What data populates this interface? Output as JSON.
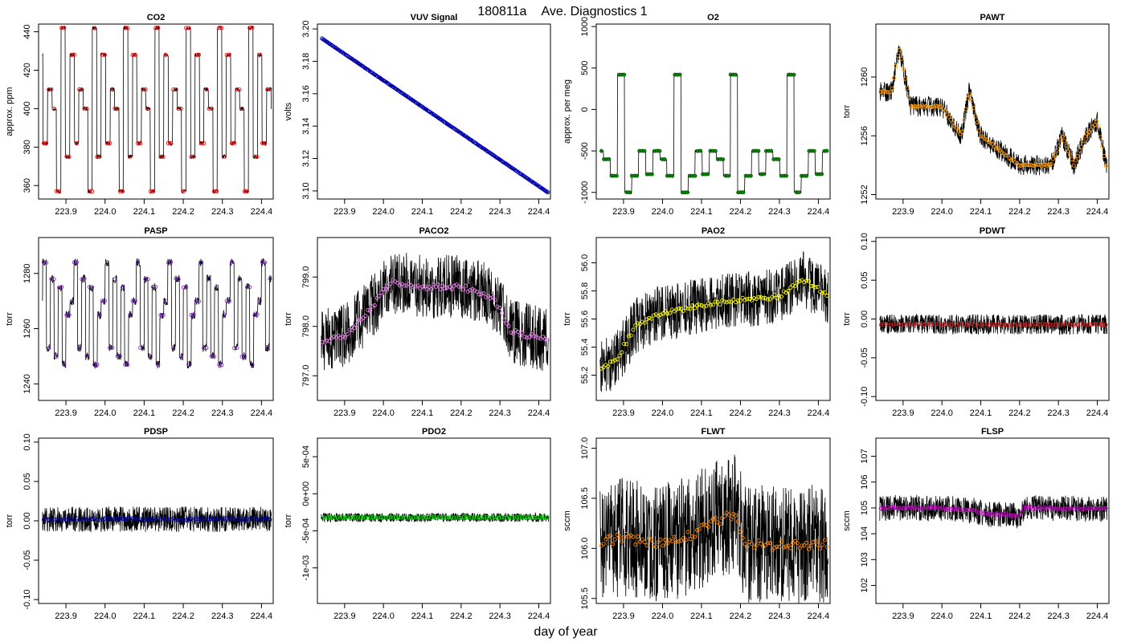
{
  "figure": {
    "title_id": "180811a",
    "title_text": "Ave. Diagnostics 1",
    "xlabel": "day of year"
  },
  "chart_data": [
    {
      "type": "line",
      "title": "CO2",
      "ylabel": "approx. ppm",
      "xlim": [
        223.83,
        224.43
      ],
      "ylim": [
        353,
        444
      ],
      "xticks": [
        223.9,
        224.0,
        224.1,
        224.2,
        224.3,
        224.4
      ],
      "xtick_labels": [
        "223.9",
        "224.0",
        "224.1",
        "224.2",
        "224.3",
        "224.4"
      ],
      "yticks": [
        360,
        380,
        400,
        420,
        440
      ],
      "ytick_labels": [
        "360",
        "380",
        "400",
        "420",
        "440"
      ],
      "pattern": "steps",
      "levels": [
        428,
        382,
        410,
        400,
        357,
        442,
        375
      ],
      "period": 0.08,
      "noise": 1,
      "n": 800,
      "avg_n": 90,
      "avg_color": "#ff0000",
      "marker": "circle"
    },
    {
      "type": "line",
      "title": "VUV Signal",
      "ylabel": "volts",
      "xlim": [
        223.83,
        224.43
      ],
      "ylim": [
        3.095,
        3.203
      ],
      "xticks": [
        223.9,
        224.0,
        224.1,
        224.2,
        224.3,
        224.4
      ],
      "xtick_labels": [
        "223.9",
        "224.0",
        "224.1",
        "224.2",
        "224.3",
        "224.4"
      ],
      "yticks": [
        3.1,
        3.12,
        3.14,
        3.16,
        3.18,
        3.2
      ],
      "ytick_labels": [
        "3.10",
        "3.12",
        "3.14",
        "3.16",
        "3.18",
        "3.20"
      ],
      "pattern": "linear",
      "start": 3.196,
      "end": 3.098,
      "noise": 0.001,
      "n": 800,
      "avg_n": 180,
      "avg_color": "#0000cc",
      "marker": "circle"
    },
    {
      "type": "line",
      "title": "O2",
      "ylabel": "approx. per meg",
      "xlim": [
        223.83,
        224.43
      ],
      "ylim": [
        -1080,
        1030
      ],
      "xticks": [
        223.9,
        224.0,
        224.1,
        224.2,
        224.3,
        224.4
      ],
      "xtick_labels": [
        "223.9",
        "224.0",
        "224.1",
        "224.2",
        "224.3",
        "224.4"
      ],
      "yticks": [
        -1000,
        -500,
        0,
        500,
        1000
      ],
      "ytick_labels": [
        "-1000",
        "-500",
        "0",
        "500",
        "1000"
      ],
      "pattern": "steps",
      "levels": [
        -500,
        -600,
        -800,
        420,
        -1000,
        -800,
        -500,
        -780
      ],
      "period": 0.145,
      "noise": 15,
      "n": 800,
      "avg_n": 90,
      "avg_color": "#008800",
      "marker": "star"
    },
    {
      "type": "line",
      "title": "PAWT",
      "ylabel": "torr",
      "xlim": [
        223.83,
        224.43
      ],
      "ylim": [
        1251.7,
        1263.6
      ],
      "xticks": [
        223.9,
        224.0,
        224.1,
        224.2,
        224.3,
        224.4
      ],
      "xtick_labels": [
        "223.9",
        "224.0",
        "224.1",
        "224.2",
        "224.3",
        "224.4"
      ],
      "yticks": [
        1252,
        1256,
        1260
      ],
      "ytick_labels": [
        "1252",
        "1256",
        "1260"
      ],
      "pattern": "curve",
      "curve_x": [
        223.84,
        223.87,
        223.89,
        223.92,
        224.0,
        224.05,
        224.07,
        224.1,
        224.2,
        224.25,
        224.28,
        224.31,
        224.34,
        224.37,
        224.4,
        224.43
      ],
      "curve_y": [
        1259,
        1259,
        1262,
        1258,
        1258,
        1256,
        1259,
        1256,
        1254,
        1254,
        1254,
        1256,
        1254,
        1256,
        1257,
        1253
      ],
      "noise": 0.7,
      "n": 900,
      "avg_n": 120,
      "avg_color": "#ff9900",
      "marker": "circle"
    },
    {
      "type": "line",
      "title": "PASP",
      "ylabel": "torr",
      "xlim": [
        223.83,
        224.43
      ],
      "ylim": [
        1234,
        1293
      ],
      "xticks": [
        223.9,
        224.0,
        224.1,
        224.2,
        224.3,
        224.4
      ],
      "xtick_labels": [
        "223.9",
        "224.0",
        "224.1",
        "224.2",
        "224.3",
        "224.4"
      ],
      "yticks": [
        1240,
        1260,
        1280
      ],
      "ytick_labels": [
        "1240",
        "1260",
        "1280"
      ],
      "pattern": "steps",
      "levels": [
        1270,
        1284,
        1253,
        1278,
        1250,
        1275,
        1247,
        1265
      ],
      "period": 0.08,
      "noise": 1.5,
      "n": 800,
      "avg_n": 90,
      "avg_color": "#7b2fbf",
      "marker": "circle"
    },
    {
      "type": "line",
      "title": "PACO2",
      "ylabel": "torr",
      "xlim": [
        223.83,
        224.43
      ],
      "ylim": [
        796.5,
        799.8
      ],
      "xticks": [
        223.9,
        224.0,
        224.1,
        224.2,
        224.3,
        224.4
      ],
      "xtick_labels": [
        "223.9",
        "224.0",
        "224.1",
        "224.2",
        "224.3",
        "224.4"
      ],
      "yticks": [
        797.0,
        798.0,
        799.0
      ],
      "ytick_labels": [
        "797.0",
        "798.0",
        "799.0"
      ],
      "pattern": "curve",
      "curve_x": [
        223.84,
        223.9,
        223.96,
        224.02,
        224.1,
        224.2,
        224.28,
        224.33,
        224.43
      ],
      "curve_y": [
        797.7,
        797.8,
        798.3,
        798.9,
        798.8,
        798.8,
        798.6,
        797.9,
        797.7
      ],
      "noise": 0.65,
      "n": 900,
      "avg_n": 100,
      "avg_color": "#ee82ee",
      "marker": "circle"
    },
    {
      "type": "line",
      "title": "PAO2",
      "ylabel": "torr",
      "xlim": [
        223.83,
        224.43
      ],
      "ylim": [
        55.02,
        56.18
      ],
      "xticks": [
        223.9,
        224.0,
        224.1,
        224.2,
        224.3,
        224.4
      ],
      "xtick_labels": [
        "223.9",
        "224.0",
        "224.1",
        "224.2",
        "224.3",
        "224.4"
      ],
      "yticks": [
        55.2,
        55.4,
        55.6,
        55.8,
        56.0
      ],
      "ytick_labels": [
        "55.2",
        "55.4",
        "55.6",
        "55.8",
        "56.0"
      ],
      "pattern": "curve",
      "curve_x": [
        223.84,
        223.88,
        223.93,
        223.98,
        224.1,
        224.2,
        224.3,
        224.36,
        224.43
      ],
      "curve_y": [
        55.25,
        55.3,
        55.55,
        55.63,
        55.7,
        55.74,
        55.76,
        55.88,
        55.76
      ],
      "noise": 0.2,
      "n": 900,
      "avg_n": 100,
      "avg_color": "#ffff00",
      "marker": "circle"
    },
    {
      "type": "line",
      "title": "PDWT",
      "ylabel": "torr",
      "xlim": [
        223.83,
        224.43
      ],
      "ylim": [
        -0.105,
        0.105
      ],
      "xticks": [
        223.9,
        224.0,
        224.1,
        224.2,
        224.3,
        224.4
      ],
      "xtick_labels": [
        "223.9",
        "224.0",
        "224.1",
        "224.2",
        "224.3",
        "224.4"
      ],
      "yticks": [
        -0.1,
        -0.05,
        0.0,
        0.05,
        0.1
      ],
      "ytick_labels": [
        "-0.10",
        "-0.05",
        "0.00",
        "0.05",
        "0.10"
      ],
      "pattern": "flat",
      "base": -0.007,
      "noise": 0.013,
      "n": 900,
      "avg_n": 90,
      "avg_color": "#cc2222",
      "marker": "circle"
    },
    {
      "type": "line",
      "title": "PDSP",
      "ylabel": "torr",
      "xlim": [
        223.83,
        224.43
      ],
      "ylim": [
        -0.105,
        0.105
      ],
      "xticks": [
        223.9,
        224.0,
        224.1,
        224.2,
        224.3,
        224.4
      ],
      "xtick_labels": [
        "223.9",
        "224.0",
        "224.1",
        "224.2",
        "224.3",
        "224.4"
      ],
      "yticks": [
        -0.1,
        -0.05,
        0.0,
        0.05,
        0.1
      ],
      "ytick_labels": [
        "-0.10",
        "-0.05",
        "0.00",
        "0.05",
        "0.10"
      ],
      "pattern": "flat",
      "base": 0.002,
      "noise": 0.016,
      "n": 900,
      "avg_n": 90,
      "avg_color": "#0000aa",
      "marker": "circle"
    },
    {
      "type": "line",
      "title": "PDO2",
      "ylabel": "torr",
      "xlim": [
        223.83,
        224.43
      ],
      "ylim": [
        -0.00148,
        0.00075
      ],
      "xticks": [
        223.9,
        224.0,
        224.1,
        224.2,
        224.3,
        224.4
      ],
      "xtick_labels": [
        "223.9",
        "224.0",
        "224.1",
        "224.2",
        "224.3",
        "224.4"
      ],
      "yticks": [
        -0.001,
        -0.0005,
        0.0,
        0.0005
      ],
      "ytick_labels": [
        "-1e-03",
        "-5e-04",
        "0e+00",
        "5e-04"
      ],
      "pattern": "flat",
      "base": -0.00032,
      "noise": 6e-05,
      "n": 900,
      "avg_n": 90,
      "avg_color": "#00dd00",
      "marker": "circle"
    },
    {
      "type": "line",
      "title": "FLWT",
      "ylabel": "sccm",
      "xlim": [
        223.83,
        224.43
      ],
      "ylim": [
        105.45,
        107.1
      ],
      "xticks": [
        223.9,
        224.0,
        224.1,
        224.2,
        224.3,
        224.4
      ],
      "xtick_labels": [
        "223.9",
        "224.0",
        "224.1",
        "224.2",
        "224.3",
        "224.4"
      ],
      "yticks": [
        105.5,
        106.0,
        106.5,
        107.0
      ],
      "ytick_labels": [
        "105.5",
        "106.0",
        "106.5",
        "107.0"
      ],
      "pattern": "curve",
      "curve_x": [
        223.84,
        223.9,
        223.96,
        224.03,
        224.08,
        224.12,
        224.19,
        224.21,
        224.3,
        224.43
      ],
      "curve_y": [
        106.05,
        106.12,
        106.05,
        106.08,
        106.15,
        106.25,
        106.35,
        106.05,
        106.02,
        106.05
      ],
      "noise": 0.6,
      "n": 900,
      "avg_n": 100,
      "avg_color": "#ff8800",
      "marker": "circle"
    },
    {
      "type": "line",
      "title": "FLSP",
      "ylabel": "sccm",
      "xlim": [
        223.83,
        224.43
      ],
      "ylim": [
        101.3,
        107.7
      ],
      "xticks": [
        223.9,
        224.0,
        224.1,
        224.2,
        224.3,
        224.4
      ],
      "xtick_labels": [
        "223.9",
        "224.0",
        "224.1",
        "224.2",
        "224.3",
        "224.4"
      ],
      "yticks": [
        102,
        103,
        104,
        105,
        106,
        107
      ],
      "ytick_labels": [
        "102",
        "103",
        "104",
        "105",
        "106",
        "107"
      ],
      "pattern": "curve",
      "curve_x": [
        223.84,
        224.0,
        224.08,
        224.12,
        224.2,
        224.21,
        224.43
      ],
      "curve_y": [
        105.0,
        105.0,
        104.9,
        104.75,
        104.7,
        105.0,
        104.95
      ],
      "noise": 0.5,
      "n": 900,
      "avg_n": 100,
      "avg_color": "#cc00cc",
      "marker": "circle"
    }
  ]
}
